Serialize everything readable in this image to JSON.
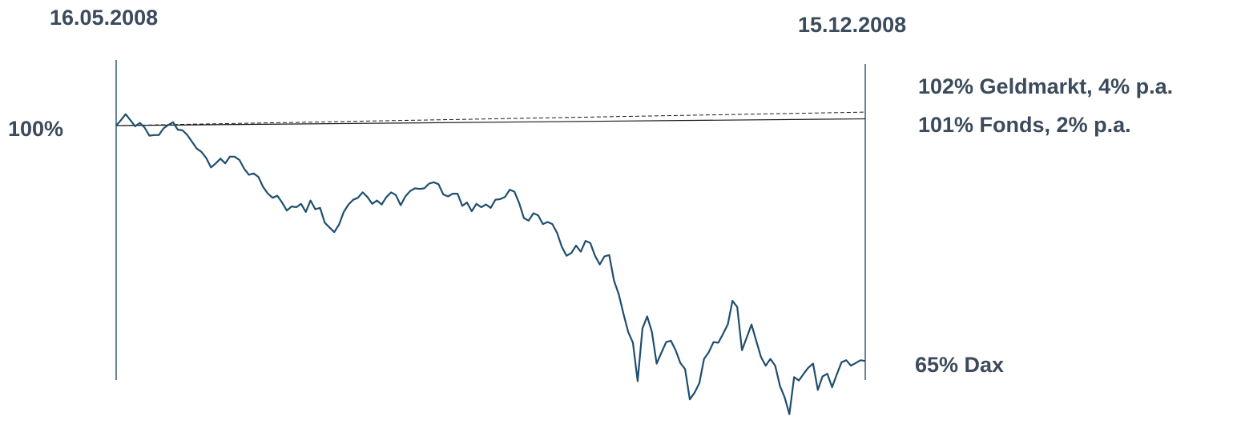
{
  "chart_data": {
    "type": "line",
    "x_start": "16.05.2008",
    "x_end": "15.12.2008",
    "start_value_label": "100%",
    "ylim": [
      58,
      106
    ],
    "colors": {
      "line": "#1f4e6e",
      "axis": "#3b5a73",
      "text": "#3b4a5c"
    },
    "series": [
      {
        "name": "Geldmarkt",
        "label": "102% Geldmarkt, 4% p.a.",
        "style": "dashed",
        "x": [
          "16.05.2008",
          "15.12.2008"
        ],
        "values": [
          100,
          102
        ]
      },
      {
        "name": "Fonds",
        "label": "101% Fonds, 2% p.a.",
        "style": "solid-thin",
        "x": [
          "16.05.2008",
          "15.12.2008"
        ],
        "values": [
          100,
          101
        ]
      },
      {
        "name": "Dax",
        "label": "65% Dax",
        "style": "solid-thick",
        "values": [
          100,
          100.8,
          101.7,
          100.8,
          99.9,
          100.4,
          99.7,
          98.5,
          98.6,
          98.6,
          99.6,
          100.1,
          100.5,
          99.4,
          99.3,
          98.6,
          97.6,
          96.6,
          96.1,
          95.2,
          93.8,
          94.4,
          95.1,
          94.4,
          95.4,
          95.4,
          94.9,
          93.6,
          92.7,
          92.9,
          92.4,
          90.9,
          89.9,
          89.3,
          89.6,
          88.6,
          87.4,
          88,
          87.9,
          88.4,
          87.2,
          88.9,
          87.6,
          87.8,
          85.6,
          84.9,
          84.2,
          85.3,
          87.2,
          88.3,
          89,
          89.3,
          90.1,
          89.4,
          88.4,
          88.9,
          88.3,
          89.4,
          90.1,
          89.7,
          88.2,
          89.5,
          90.3,
          90.7,
          90.6,
          90.7,
          91.4,
          91.6,
          91.3,
          89.8,
          89.5,
          89.9,
          89.9,
          88.1,
          88.6,
          87.3,
          88.4,
          87.9,
          88.3,
          87.8,
          89,
          89.1,
          89.4,
          90.5,
          90.2,
          88.5,
          86.3,
          85.9,
          87,
          86.7,
          85.4,
          85.7,
          85.4,
          84.1,
          82,
          80.7,
          81.1,
          82.2,
          81.3,
          82.9,
          82.6,
          80.7,
          79.4,
          80.6,
          80.8,
          77,
          75,
          72.1,
          69.4,
          67.8,
          62.1,
          69.9,
          71.7,
          69.4,
          64.7,
          66.3,
          67.9,
          68.1,
          66.7,
          64.8,
          63.9,
          59.4,
          60.4,
          61.8,
          65.4,
          66.4,
          67.9,
          67.8,
          69.1,
          70.5,
          74,
          73.1,
          66.7,
          68.6,
          70.5,
          68.1,
          65.7,
          64.4,
          65.4,
          64.4,
          61.4,
          59.7,
          57.2,
          62.7,
          62.2,
          63.2,
          64.1,
          64.7,
          60.8,
          62.8,
          63.2,
          61.2,
          63.1,
          64.9,
          65.2,
          64.4,
          64.8,
          65.2,
          65.1
        ]
      }
    ]
  }
}
